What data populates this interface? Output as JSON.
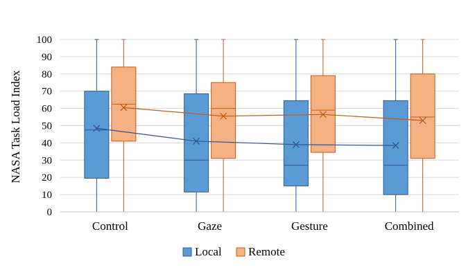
{
  "chart_data": {
    "type": "box",
    "ylabel": "NASA Task Load Index",
    "ylim": [
      0,
      100
    ],
    "yticks": [
      0,
      10,
      20,
      30,
      40,
      50,
      60,
      70,
      80,
      90,
      100
    ],
    "categories": [
      "Control",
      "Gaze",
      "Gesture",
      "Combined"
    ],
    "grid": true,
    "legend_position": "bottom",
    "series": [
      {
        "name": "Local",
        "fill": "#5b9bd5",
        "stroke": "#2f5597",
        "boxes": [
          {
            "min": 0,
            "q1": 19.5,
            "median": 47.5,
            "q3": 70,
            "max": 100,
            "mean": 48.5
          },
          {
            "min": 0,
            "q1": 11.5,
            "median": 30,
            "q3": 68.5,
            "max": 100,
            "mean": 41
          },
          {
            "min": 0,
            "q1": 15,
            "median": 27,
            "q3": 64.5,
            "max": 100,
            "mean": 39
          },
          {
            "min": 0,
            "q1": 10,
            "median": 27,
            "q3": 64.5,
            "max": 100,
            "mean": 38.5
          }
        ]
      },
      {
        "name": "Remote",
        "fill": "#f4b183",
        "stroke": "#c55a11",
        "boxes": [
          {
            "min": 0,
            "q1": 41,
            "median": 62.5,
            "q3": 84,
            "max": 100,
            "mean": 60.5
          },
          {
            "min": 0,
            "q1": 31,
            "median": 60,
            "q3": 75,
            "max": 100,
            "mean": 55.5
          },
          {
            "min": 0,
            "q1": 34.5,
            "median": 59,
            "q3": 79,
            "max": 100,
            "mean": 56.5
          },
          {
            "min": 0,
            "q1": 31,
            "median": 55,
            "q3": 80,
            "max": 100,
            "mean": 53
          }
        ]
      }
    ]
  }
}
